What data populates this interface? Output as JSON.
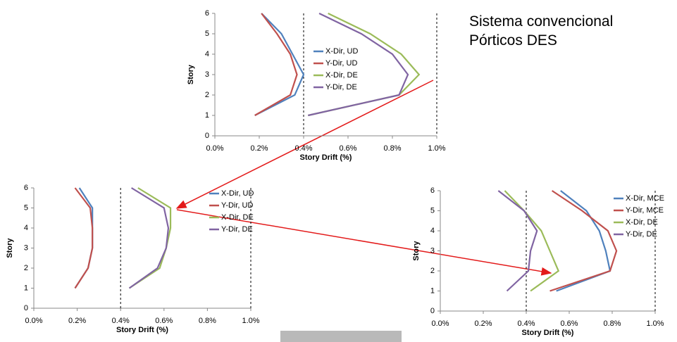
{
  "annotation_lines": [
    "Sistema convencional",
    "Pórticos DES"
  ],
  "chart_data": [
    {
      "type": "line",
      "orientation": "vertical",
      "xlabel": "Story Drift (%)",
      "ylabel": "Story",
      "y": [
        1,
        2,
        3,
        4,
        5,
        6
      ],
      "series": [
        {
          "name": "X-Dir, UD",
          "color": "#4f81bd",
          "values": [
            0.18,
            0.36,
            0.4,
            0.35,
            0.3,
            0.21
          ]
        },
        {
          "name": "Y-Dir, UD",
          "color": "#c0504d",
          "values": [
            0.18,
            0.34,
            0.37,
            0.34,
            0.28,
            0.21
          ]
        },
        {
          "name": "X-Dir, DE",
          "color": "#9bbb59",
          "values": [
            0.42,
            0.83,
            0.92,
            0.84,
            0.7,
            0.51
          ]
        },
        {
          "name": "Y-Dir, DE",
          "color": "#8064a2",
          "values": [
            0.42,
            0.83,
            0.87,
            0.8,
            0.66,
            0.47
          ]
        }
      ],
      "xlim": [
        0,
        1.0
      ],
      "xticks": [
        {
          "value": 0,
          "label": "0.0%"
        },
        {
          "value": 0.2,
          "label": "0.2%"
        },
        {
          "value": 0.4,
          "label": "0.4%"
        },
        {
          "value": 0.6,
          "label": "0.6%"
        },
        {
          "value": 0.8,
          "label": "0.8%"
        },
        {
          "value": 1.0,
          "label": "1.0%"
        }
      ],
      "ylim": [
        0,
        6
      ],
      "yticks": [
        0,
        1,
        2,
        3,
        4,
        5,
        6
      ],
      "reference_lines": [
        0.4,
        1.0
      ],
      "legend": "center"
    },
    {
      "type": "line",
      "orientation": "vertical",
      "xlabel": "Story Drift (%)",
      "ylabel": "Story",
      "y": [
        1,
        2,
        3,
        4,
        5,
        6
      ],
      "series": [
        {
          "name": "X-Dir, UD",
          "color": "#4f81bd",
          "values": [
            0.19,
            0.25,
            0.27,
            0.27,
            0.27,
            0.21
          ]
        },
        {
          "name": "Y-Dir, UD",
          "color": "#c0504d",
          "values": [
            0.19,
            0.25,
            0.27,
            0.27,
            0.26,
            0.19
          ]
        },
        {
          "name": "X-Dir, DE",
          "color": "#9bbb59",
          "values": [
            0.44,
            0.58,
            0.61,
            0.63,
            0.63,
            0.48
          ]
        },
        {
          "name": "Y-Dir, DE",
          "color": "#8064a2",
          "values": [
            0.44,
            0.57,
            0.61,
            0.62,
            0.6,
            0.45
          ]
        }
      ],
      "xlim": [
        0,
        1.0
      ],
      "xticks": [
        {
          "value": 0,
          "label": "0.0%"
        },
        {
          "value": 0.2,
          "label": "0.2%"
        },
        {
          "value": 0.4,
          "label": "0.4%"
        },
        {
          "value": 0.6,
          "label": "0.6%"
        },
        {
          "value": 0.8,
          "label": "0.8%"
        },
        {
          "value": 1.0,
          "label": "1.0%"
        }
      ],
      "ylim": [
        0,
        6
      ],
      "yticks": [
        0,
        1,
        2,
        3,
        4,
        5,
        6
      ],
      "reference_lines": [
        0.4,
        1.0
      ],
      "legend": "upper-right"
    },
    {
      "type": "line",
      "orientation": "vertical",
      "xlabel": "Story Drift (%)",
      "ylabel": "Story",
      "y": [
        1,
        2,
        3,
        4,
        5,
        6
      ],
      "series": [
        {
          "name": "X-Dir, MCE",
          "color": "#4f81bd",
          "values": [
            0.54,
            0.79,
            0.77,
            0.74,
            0.68,
            0.56
          ]
        },
        {
          "name": "Y-Dir, MCE",
          "color": "#c0504d",
          "values": [
            0.51,
            0.79,
            0.82,
            0.78,
            0.66,
            0.52
          ]
        },
        {
          "name": "X-Dir, DE",
          "color": "#9bbb59",
          "values": [
            0.42,
            0.55,
            0.51,
            0.47,
            0.39,
            0.3
          ]
        },
        {
          "name": "Y-Dir, DE",
          "color": "#8064a2",
          "values": [
            0.31,
            0.41,
            0.42,
            0.45,
            0.39,
            0.27
          ]
        }
      ],
      "xlim": [
        0,
        1.0
      ],
      "xticks": [
        {
          "value": 0,
          "label": "0.0%"
        },
        {
          "value": 0.2,
          "label": "0.2%"
        },
        {
          "value": 0.4,
          "label": "0.4%"
        },
        {
          "value": 0.6,
          "label": "0.6%"
        },
        {
          "value": 0.8,
          "label": "0.8%"
        },
        {
          "value": 1.0,
          "label": "1.0%"
        }
      ],
      "ylim": [
        0,
        6
      ],
      "yticks": [
        0,
        1,
        2,
        3,
        4,
        5,
        6
      ],
      "reference_lines": [
        0.4,
        1.0
      ],
      "legend": "right"
    }
  ]
}
